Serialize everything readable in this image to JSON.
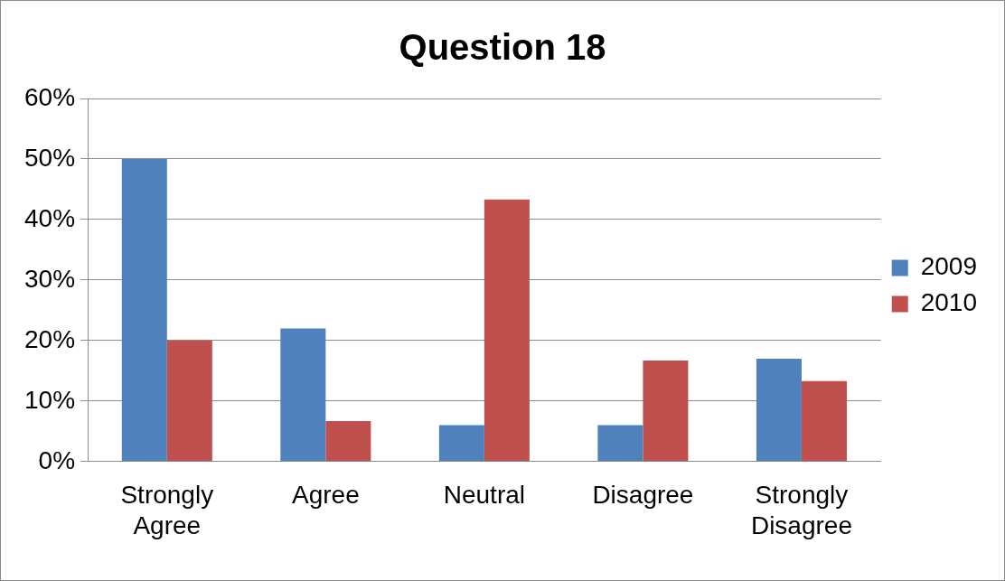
{
  "chart_data": {
    "type": "bar",
    "title": "Question 18",
    "categories": [
      "Strongly Agree",
      "Agree",
      "Neutral",
      "Disagree",
      "Strongly Disagree"
    ],
    "series": [
      {
        "name": "2009",
        "color": "#4f81bd",
        "values": [
          50,
          22,
          6,
          6,
          17
        ]
      },
      {
        "name": "2010",
        "color": "#c0504d",
        "values": [
          20,
          6.7,
          43.3,
          16.7,
          13.3
        ]
      }
    ],
    "ylim": [
      0,
      60
    ],
    "yticks": [
      {
        "value": 0,
        "label": "0%"
      },
      {
        "value": 10,
        "label": "10%"
      },
      {
        "value": 20,
        "label": "20%"
      },
      {
        "value": 30,
        "label": "30%"
      },
      {
        "value": 40,
        "label": "40%"
      },
      {
        "value": 50,
        "label": "50%"
      },
      {
        "value": 60,
        "label": "60%"
      }
    ],
    "grid": "y",
    "legend": "right"
  }
}
